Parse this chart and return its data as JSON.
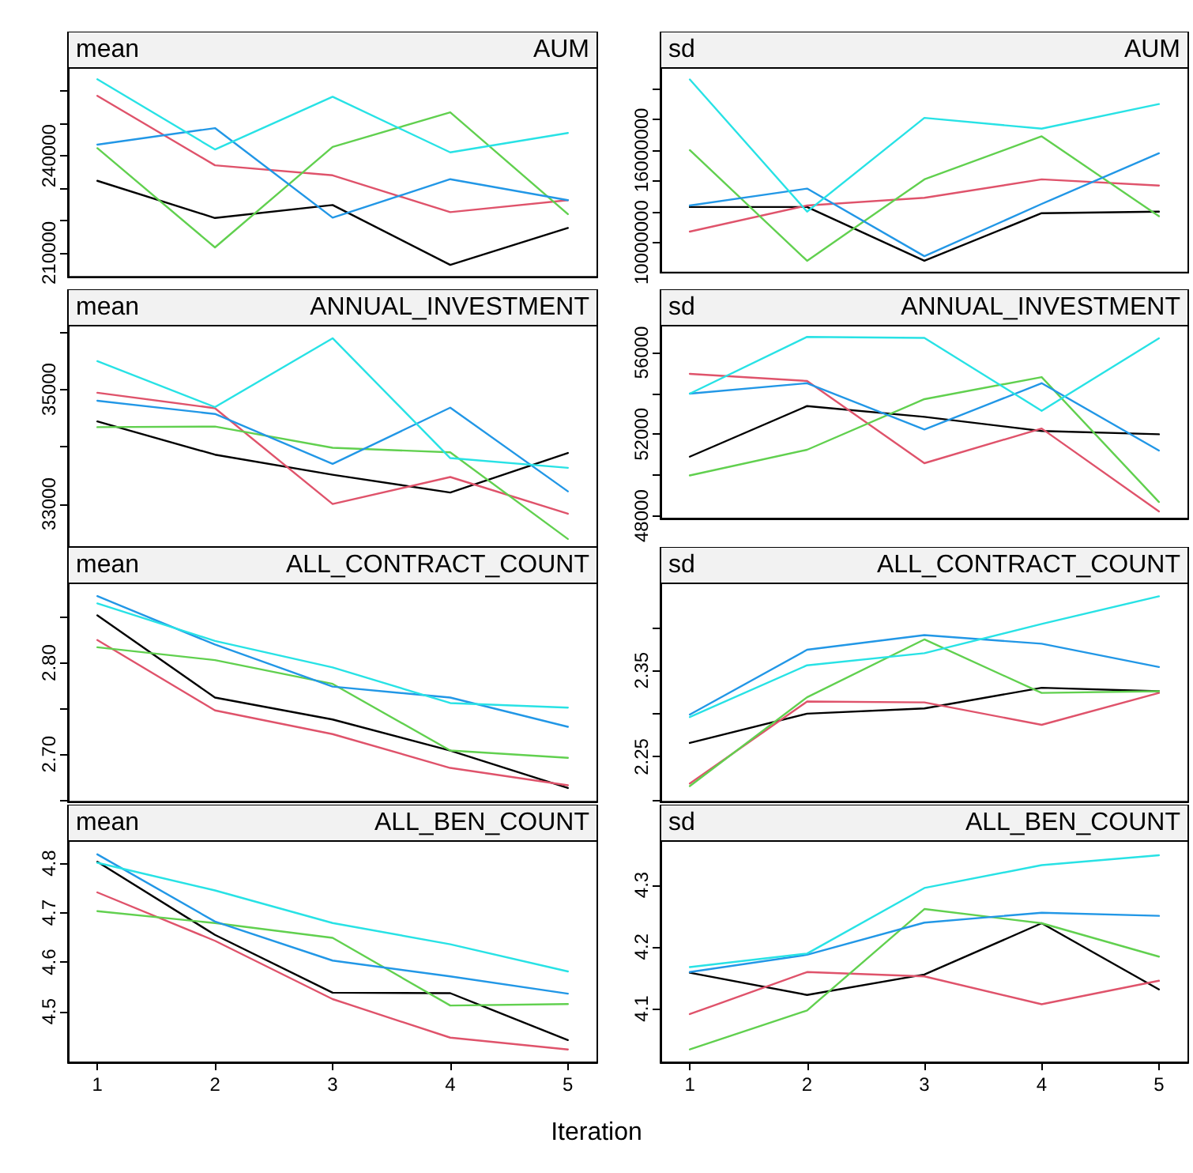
{
  "chart_data": [
    {
      "type": "line",
      "title": "AUM",
      "subtitle": "mean",
      "x": [
        1,
        2,
        3,
        4,
        5
      ],
      "xlim": [
        0.75,
        5.25
      ],
      "xticks": [
        1,
        2,
        3,
        4,
        5
      ],
      "ylim": [
        202600,
        267200
      ],
      "yticks": [
        210000,
        {
          "value": 220000,
          "label": null
        },
        {
          "value": 230000,
          "label": null
        },
        240000,
        {
          "value": 250000,
          "label": null
        },
        {
          "value": 260000,
          "label": null
        }
      ],
      "tick_labels": "y",
      "series": [
        {
          "color": "#000000",
          "values": [
            232300,
            220800,
            224800,
            206300,
            217700
          ]
        },
        {
          "color": "#df536b",
          "values": [
            258600,
            237100,
            234000,
            222600,
            226300
          ]
        },
        {
          "color": "#61d04f",
          "values": [
            242400,
            211700,
            242800,
            253500,
            222000
          ]
        },
        {
          "color": "#2297e6",
          "values": [
            243500,
            248600,
            220900,
            232800,
            226300
          ]
        },
        {
          "color": "#28e2e5",
          "values": [
            263700,
            242000,
            258300,
            241100,
            247100
          ]
        }
      ]
    },
    {
      "type": "line",
      "title": "AUM",
      "subtitle": "sd",
      "x": [
        1,
        2,
        3,
        4,
        5
      ],
      "xlim": [
        0.75,
        5.25
      ],
      "xticks": [
        1,
        2,
        3,
        4,
        5
      ],
      "ylim": [
        8040000,
        21350000
      ],
      "yticks": [
        10000000,
        {
          "value": 12000000,
          "label": null
        },
        {
          "value": 14000000,
          "label": null
        },
        16000000,
        {
          "value": 18000000,
          "label": null
        },
        {
          "value": 20000000,
          "label": null
        }
      ],
      "tick_labels": "y",
      "series": [
        {
          "color": "#000000",
          "values": [
            12300000,
            12300000,
            8800000,
            11900000,
            12000000
          ]
        },
        {
          "color": "#df536b",
          "values": [
            10700000,
            12400000,
            12900000,
            14100000,
            13700000
          ]
        },
        {
          "color": "#61d04f",
          "values": [
            16000000,
            8800000,
            14100000,
            16900000,
            11700000
          ]
        },
        {
          "color": "#2297e6",
          "values": [
            12400000,
            13500000,
            9100000,
            12500000,
            15800000
          ]
        },
        {
          "color": "#28e2e5",
          "values": [
            20600000,
            12000000,
            18100000,
            17400000,
            19000000
          ]
        }
      ]
    },
    {
      "type": "line",
      "title": "ANNUAL_INVESTMENT",
      "subtitle": "mean",
      "x": [
        1,
        2,
        3,
        4,
        5
      ],
      "xlim": [
        0.75,
        5.25
      ],
      "xticks": [
        1,
        2,
        3,
        4,
        5
      ],
      "ylim": [
        32250,
        36110
      ],
      "yticks": [
        33000,
        {
          "value": 34000,
          "label": null
        },
        35000,
        {
          "value": 36000,
          "label": null
        }
      ],
      "tick_labels": "y",
      "series": [
        {
          "color": "#000000",
          "values": [
            34440,
            33860,
            33510,
            33200,
            33890
          ]
        },
        {
          "color": "#df536b",
          "values": [
            34940,
            34670,
            33000,
            33470,
            32830
          ]
        },
        {
          "color": "#61d04f",
          "values": [
            34340,
            34350,
            33980,
            33900,
            32390
          ]
        },
        {
          "color": "#2297e6",
          "values": [
            34800,
            34570,
            33700,
            34680,
            33220
          ]
        },
        {
          "color": "#28e2e5",
          "values": [
            35490,
            34690,
            35890,
            33800,
            33630
          ]
        }
      ]
    },
    {
      "type": "line",
      "title": "ANNUAL_INVESTMENT",
      "subtitle": "sd",
      "x": [
        1,
        2,
        3,
        4,
        5
      ],
      "xlim": [
        0.75,
        5.25
      ],
      "xticks": [
        1,
        2,
        3,
        4,
        5
      ],
      "ylim": [
        47870,
        57320
      ],
      "yticks": [
        48000,
        {
          "value": 50000,
          "label": null
        },
        52000,
        {
          "value": 54000,
          "label": null
        },
        56000
      ],
      "tick_labels": "y",
      "series": [
        {
          "color": "#000000",
          "values": [
            50900,
            53380,
            52850,
            52160,
            52000
          ]
        },
        {
          "color": "#df536b",
          "values": [
            54960,
            54610,
            50580,
            52280,
            48220
          ]
        },
        {
          "color": "#61d04f",
          "values": [
            49980,
            51240,
            53720,
            54800,
            48680
          ]
        },
        {
          "color": "#2297e6",
          "values": [
            53990,
            54500,
            52230,
            54500,
            51200
          ]
        },
        {
          "color": "#28e2e5",
          "values": [
            53990,
            56770,
            56720,
            53150,
            56700
          ]
        }
      ]
    },
    {
      "type": "line",
      "title": "ALL_CONTRACT_COUNT",
      "subtitle": "mean",
      "x": [
        1,
        2,
        3,
        4,
        5
      ],
      "xlim": [
        0.75,
        5.25
      ],
      "xticks": [
        1,
        2,
        3,
        4,
        5
      ],
      "ylim": [
        2.648,
        2.887
      ],
      "yticks": [
        {
          "value": 2.65,
          "label": null
        },
        {
          "value": 2.7,
          "label": "2.70"
        },
        {
          "value": 2.75,
          "label": null
        },
        {
          "value": 2.8,
          "label": "2.80"
        },
        {
          "value": 2.85,
          "label": null
        }
      ],
      "tick_labels": "y",
      "series": [
        {
          "color": "#000000",
          "values": [
            2.852,
            2.762,
            2.738,
            2.704,
            2.663
          ]
        },
        {
          "color": "#df536b",
          "values": [
            2.825,
            2.748,
            2.722,
            2.685,
            2.666
          ]
        },
        {
          "color": "#61d04f",
          "values": [
            2.817,
            2.803,
            2.777,
            2.704,
            2.696
          ]
        },
        {
          "color": "#2297e6",
          "values": [
            2.873,
            2.82,
            2.774,
            2.762,
            2.73
          ]
        },
        {
          "color": "#28e2e5",
          "values": [
            2.865,
            2.824,
            2.795,
            2.756,
            2.751
          ]
        }
      ]
    },
    {
      "type": "line",
      "title": "ALL_CONTRACT_COUNT",
      "subtitle": "sd",
      "x": [
        1,
        2,
        3,
        4,
        5
      ],
      "xlim": [
        0.75,
        5.25
      ],
      "xticks": [
        1,
        2,
        3,
        4,
        5
      ],
      "ylim": [
        2.198,
        2.451
      ],
      "yticks": [
        {
          "value": 2.2,
          "label": null
        },
        2.25,
        {
          "value": 2.3,
          "label": null
        },
        2.35,
        {
          "value": 2.4,
          "label": null
        }
      ],
      "tick_labels": "y",
      "series": [
        {
          "color": "#000000",
          "values": [
            2.266,
            2.3,
            2.306,
            2.33,
            2.326
          ]
        },
        {
          "color": "#df536b",
          "values": [
            2.219,
            2.314,
            2.313,
            2.287,
            2.324
          ]
        },
        {
          "color": "#61d04f",
          "values": [
            2.216,
            2.319,
            2.386,
            2.324,
            2.326
          ]
        },
        {
          "color": "#2297e6",
          "values": [
            2.299,
            2.374,
            2.391,
            2.381,
            2.354
          ]
        },
        {
          "color": "#28e2e5",
          "values": [
            2.296,
            2.356,
            2.37,
            2.404,
            2.436
          ]
        }
      ]
    },
    {
      "type": "line",
      "title": "ALL_BEN_COUNT",
      "subtitle": "mean",
      "xlabel": "Iteration",
      "x": [
        1,
        2,
        3,
        4,
        5
      ],
      "xlim": [
        0.75,
        5.25
      ],
      "xticks": [
        1,
        2,
        3,
        4,
        5
      ],
      "ylim": [
        4.397,
        4.845
      ],
      "yticks": [
        4.5,
        4.6,
        4.7,
        4.8
      ],
      "series": [
        {
          "color": "#000000",
          "values": [
            4.803,
            4.655,
            4.538,
            4.537,
            4.442
          ]
        },
        {
          "color": "#df536b",
          "values": [
            4.741,
            4.643,
            4.525,
            4.447,
            4.423
          ]
        },
        {
          "color": "#61d04f",
          "values": [
            4.703,
            4.679,
            4.649,
            4.512,
            4.515
          ]
        },
        {
          "color": "#2297e6",
          "values": [
            4.818,
            4.682,
            4.603,
            4.571,
            4.536
          ]
        },
        {
          "color": "#28e2e5",
          "values": [
            4.801,
            4.745,
            4.679,
            4.636,
            4.581
          ]
        }
      ]
    },
    {
      "type": "line",
      "title": "ALL_BEN_COUNT",
      "subtitle": "sd",
      "x": [
        1,
        2,
        3,
        4,
        5
      ],
      "xlim": [
        0.75,
        5.25
      ],
      "xticks": [
        1,
        2,
        3,
        4,
        5
      ],
      "ylim": [
        4.013,
        4.371
      ],
      "yticks": [
        4.1,
        4.2,
        4.3
      ],
      "series": [
        {
          "color": "#000000",
          "values": [
            4.158,
            4.122,
            4.155,
            4.238,
            4.131
          ]
        },
        {
          "color": "#df536b",
          "values": [
            4.091,
            4.159,
            4.152,
            4.107,
            4.145
          ]
        },
        {
          "color": "#61d04f",
          "values": [
            4.034,
            4.097,
            4.261,
            4.238,
            4.184
          ]
        },
        {
          "color": "#2297e6",
          "values": [
            4.159,
            4.187,
            4.239,
            4.255,
            4.25
          ]
        },
        {
          "color": "#28e2e5",
          "values": [
            4.167,
            4.189,
            4.295,
            4.332,
            4.348
          ]
        }
      ]
    }
  ]
}
